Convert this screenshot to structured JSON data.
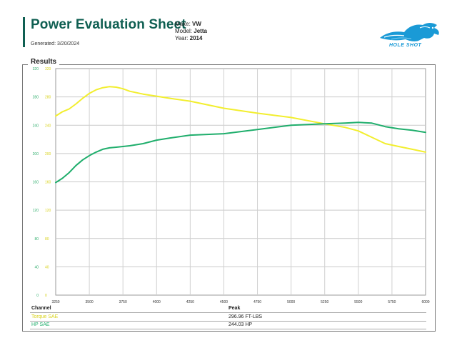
{
  "header": {
    "title": "Power Evaluation Sheet",
    "generated": "Generated: 3/20/2024",
    "make_label": "Make:",
    "make": "VW",
    "model_label": "Model:",
    "model": "Jetta",
    "year_label": "Year:",
    "year": "2014",
    "logo_text": "HOLE SHOT"
  },
  "section_title": "Results",
  "colors": {
    "torque": "#f2ee2e",
    "hp": "#1fae6c",
    "brand": "#0f5f52",
    "logo": "#1a9ad6"
  },
  "chart_data": {
    "type": "line",
    "x": [
      3250,
      3300,
      3350,
      3400,
      3450,
      3500,
      3550,
      3600,
      3650,
      3700,
      3750,
      3800,
      3900,
      4000,
      4100,
      4250,
      4500,
      4750,
      5000,
      5250,
      5400,
      5500,
      5600,
      5700,
      5800,
      5900,
      6000
    ],
    "series": [
      {
        "name": "Torque SAE",
        "color": "#f2ee2e",
        "scale": "right",
        "values": [
          253,
          259,
          263,
          270,
          278,
          285,
          290,
          293,
          294.5,
          293.8,
          291.5,
          288,
          284,
          281,
          278,
          274,
          264,
          257,
          251,
          242,
          237,
          232,
          223,
          214,
          210,
          206,
          202
        ]
      },
      {
        "name": "HP SAE",
        "color": "#1fae6c",
        "scale": "left",
        "values": [
          159,
          165,
          173,
          183,
          191,
          197,
          202,
          206,
          208,
          209,
          210,
          211,
          214,
          219,
          222,
          226,
          228,
          234,
          240,
          242,
          243,
          244,
          243,
          238,
          235,
          233,
          230
        ]
      }
    ],
    "xlabel": "",
    "ylabel": "",
    "xlim": [
      3250,
      6000
    ],
    "x_ticks": [
      3250,
      3500,
      3750,
      4000,
      4250,
      4500,
      4750,
      5000,
      5250,
      5500,
      5750,
      6000
    ],
    "y_left_ticks": [
      0,
      40,
      80,
      120,
      160,
      200,
      240,
      280,
      320
    ],
    "y_right_ticks": [
      0,
      40,
      80,
      120,
      160,
      200,
      240,
      280,
      320
    ],
    "ylim": [
      0,
      320
    ],
    "grid": true
  },
  "table": {
    "headers": {
      "channel": "Channel",
      "peak": "Peak"
    },
    "rows": [
      {
        "channel": "Torque SAE",
        "peak": "296.96 FT-LBS",
        "color": "#d8d21a"
      },
      {
        "channel": "HP SAE",
        "peak": "244.03 HP",
        "color": "#1fae6c"
      }
    ]
  }
}
